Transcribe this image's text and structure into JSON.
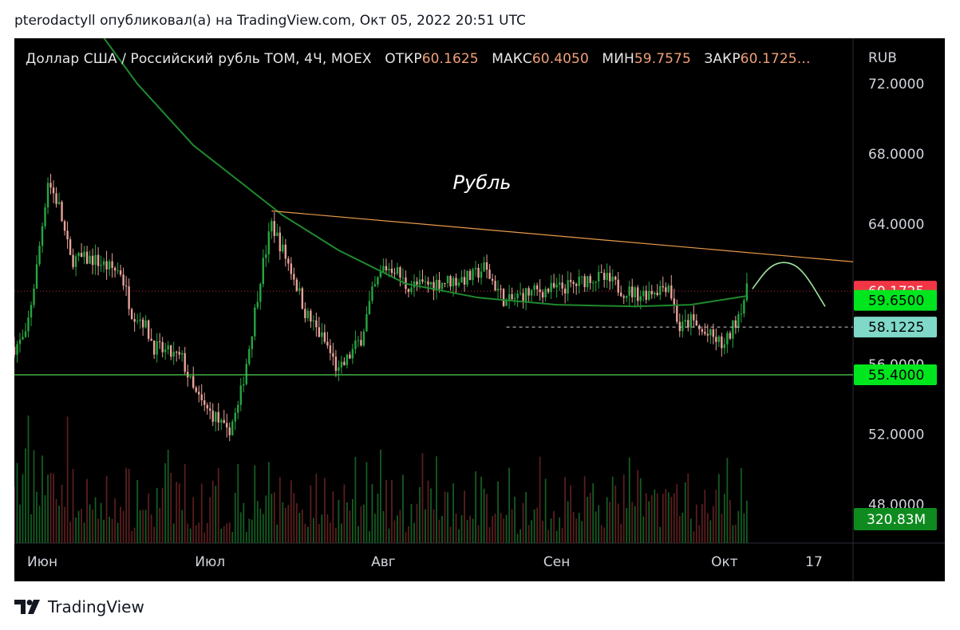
{
  "caption": {
    "author": "pterodactyll",
    "text": "pterodactyll опубликовал(а) на TradingView.com, Окт 05, 2022 20:51 UTC"
  },
  "header": {
    "symbol": "Доллар США / Российский рубль TOM, 4Ч, MOEX",
    "open_label": "ОТКР",
    "open_value": "60.1625",
    "high_label": "МАКС",
    "high_value": "60.4050",
    "low_label": "МИН",
    "low_value": "59.7575",
    "close_label": "ЗАКР",
    "close_value": "60.1725…"
  },
  "annotation": {
    "text": "Рубль"
  },
  "price_axis": {
    "currency": "RUB",
    "ticks": [
      "72.0000",
      "68.0000",
      "64.0000",
      "52.0000",
      "48.0000"
    ],
    "partial_tick": "56.0000"
  },
  "price_labels": [
    {
      "value": 60.1725,
      "text": "60.1725",
      "bg": "#f23645",
      "fg": "#ffffff"
    },
    {
      "value": 59.65,
      "text": "59.6500",
      "bg": "#00e61e",
      "fg": "#000000"
    },
    {
      "value": 58.1225,
      "text": "58.1225",
      "bg": "#7fd8c8",
      "fg": "#000000"
    },
    {
      "value": 55.4,
      "text": "55.4000",
      "bg": "#00e61e",
      "fg": "#000000"
    }
  ],
  "volume_label": {
    "text": "320.83M",
    "bg": "#0f8a1f",
    "fg": "#ffffff"
  },
  "time_axis": {
    "labels": [
      "Июн",
      "Июл",
      "Авг",
      "Сен",
      "Окт",
      "17"
    ]
  },
  "footer": {
    "brand": "TradingView"
  },
  "colors": {
    "up": "#26a641",
    "down": "#e8a29a",
    "trendline": "#e89a4a",
    "moving_average": "#1e8a2e",
    "support": "#4cd24c",
    "projection": "#9fe39f"
  },
  "chart_data": {
    "type": "candlestick",
    "title": "Доллар США / Российский рубль TOM, 4Ч, MOEX",
    "ylim": [
      45.8,
      74.6
    ],
    "x_range": [
      "2022-05-27",
      "2022-10-24"
    ],
    "close_series": [
      [
        "2022-05-27",
        57.0
      ],
      [
        "2022-05-29",
        57.5
      ],
      [
        "2022-05-31",
        61.5
      ],
      [
        "2022-06-02",
        66.5
      ],
      [
        "2022-06-04",
        65.0
      ],
      [
        "2022-06-06",
        62.0
      ],
      [
        "2022-06-08",
        62.0
      ],
      [
        "2022-06-10",
        62.0
      ],
      [
        "2022-06-13",
        61.5
      ],
      [
        "2022-06-15",
        61.3
      ],
      [
        "2022-06-17",
        59.0
      ],
      [
        "2022-06-19",
        58.5
      ],
      [
        "2022-06-21",
        57.0
      ],
      [
        "2022-06-23",
        56.7
      ],
      [
        "2022-06-26",
        56.3
      ],
      [
        "2022-06-28",
        54.5
      ],
      [
        "2022-06-30",
        53.5
      ],
      [
        "2022-07-02",
        53.0
      ],
      [
        "2022-07-04",
        52.0
      ],
      [
        "2022-07-06",
        53.5
      ],
      [
        "2022-07-08",
        57.0
      ],
      [
        "2022-07-10",
        61.0
      ],
      [
        "2022-07-12",
        64.0
      ],
      [
        "2022-07-14",
        62.5
      ],
      [
        "2022-07-16",
        61.0
      ],
      [
        "2022-07-18",
        59.0
      ],
      [
        "2022-07-20",
        58.0
      ],
      [
        "2022-07-22",
        57.0
      ],
      [
        "2022-07-24",
        55.5
      ],
      [
        "2022-07-26",
        56.5
      ],
      [
        "2022-07-28",
        57.5
      ],
      [
        "2022-07-30",
        60.0
      ],
      [
        "2022-08-01",
        61.5
      ],
      [
        "2022-08-03",
        61.5
      ],
      [
        "2022-08-05",
        60.5
      ],
      [
        "2022-08-08",
        60.5
      ],
      [
        "2022-08-11",
        60.7
      ],
      [
        "2022-08-14",
        60.8
      ],
      [
        "2022-08-17",
        61.0
      ],
      [
        "2022-08-19",
        61.5
      ],
      [
        "2022-08-21",
        60.5
      ],
      [
        "2022-08-23",
        59.5
      ],
      [
        "2022-08-26",
        60.0
      ],
      [
        "2022-08-29",
        60.2
      ],
      [
        "2022-09-01",
        60.3
      ],
      [
        "2022-09-04",
        60.5
      ],
      [
        "2022-09-07",
        61.0
      ],
      [
        "2022-09-10",
        60.8
      ],
      [
        "2022-09-13",
        60.2
      ],
      [
        "2022-09-16",
        60.0
      ],
      [
        "2022-09-19",
        60.3
      ],
      [
        "2022-09-21",
        60.6
      ],
      [
        "2022-09-23",
        58.0
      ],
      [
        "2022-09-25",
        58.5
      ],
      [
        "2022-09-27",
        57.8
      ],
      [
        "2022-09-29",
        57.5
      ],
      [
        "2022-10-01",
        57.0
      ],
      [
        "2022-10-03",
        58.5
      ],
      [
        "2022-10-05",
        60.1725
      ]
    ],
    "volume_peak_date": "2022-06-01",
    "moving_average": [
      [
        "2022-06-10",
        75.5
      ],
      [
        "2022-06-18",
        72.0
      ],
      [
        "2022-06-28",
        68.5
      ],
      [
        "2022-07-06",
        66.5
      ],
      [
        "2022-07-14",
        64.5
      ],
      [
        "2022-07-24",
        62.5
      ],
      [
        "2022-08-05",
        60.6
      ],
      [
        "2022-08-18",
        59.8
      ],
      [
        "2022-09-01",
        59.4
      ],
      [
        "2022-09-15",
        59.3
      ],
      [
        "2022-09-25",
        59.4
      ],
      [
        "2022-10-05",
        59.9
      ]
    ],
    "trendline": {
      "from": [
        "2022-07-12",
        64.75
      ],
      "to": [
        "2022-10-24",
        61.85
      ]
    },
    "support_level": 55.4,
    "dashed_level": {
      "from": "2022-08-23",
      "value": 58.1225
    },
    "projection": [
      [
        "2022-10-06",
        60.3
      ],
      [
        "2022-10-09",
        61.6
      ],
      [
        "2022-10-12",
        61.9
      ],
      [
        "2022-10-15",
        61.4
      ],
      [
        "2022-10-19",
        59.3
      ]
    ]
  }
}
